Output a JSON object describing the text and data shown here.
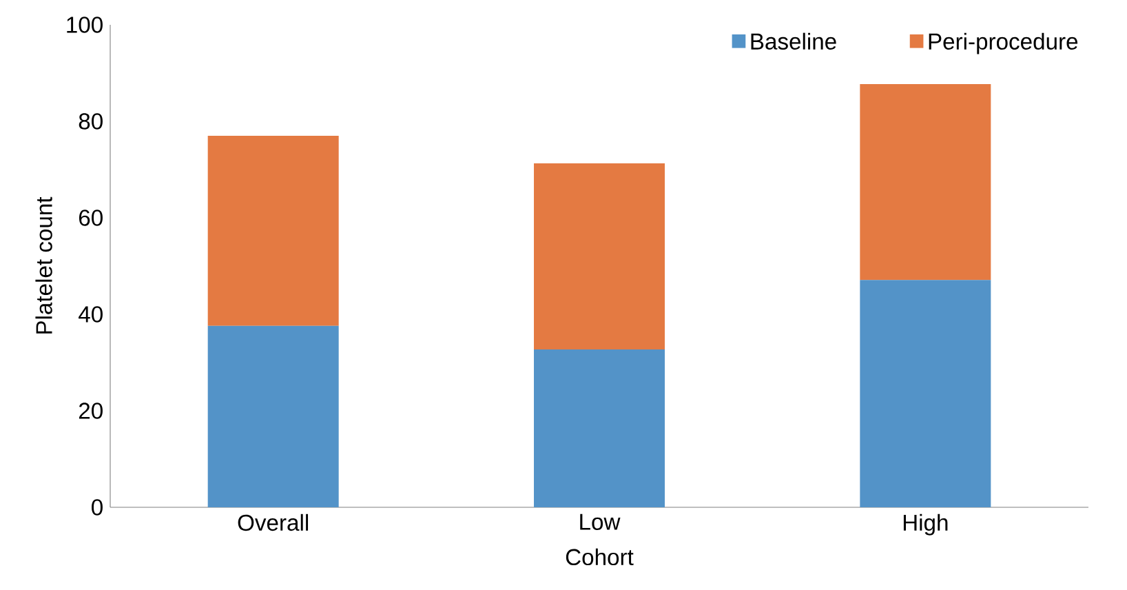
{
  "chart_data": {
    "type": "bar",
    "stacked": true,
    "xlabel": "Cohort",
    "ylabel": "Platelet count",
    "categories": [
      "Overall",
      "Low",
      "High"
    ],
    "series": [
      {
        "name": "Baseline",
        "color": "#5393c8",
        "values": [
          37.6,
          32.7,
          47.1
        ]
      },
      {
        "name": "Peri-procedure",
        "color": "#e47a42",
        "values": [
          39.4,
          38.6,
          40.6
        ]
      }
    ],
    "ylim": [
      0,
      100
    ],
    "yticks": [
      0,
      20,
      40,
      60,
      80,
      100
    ],
    "legend": "top right"
  }
}
